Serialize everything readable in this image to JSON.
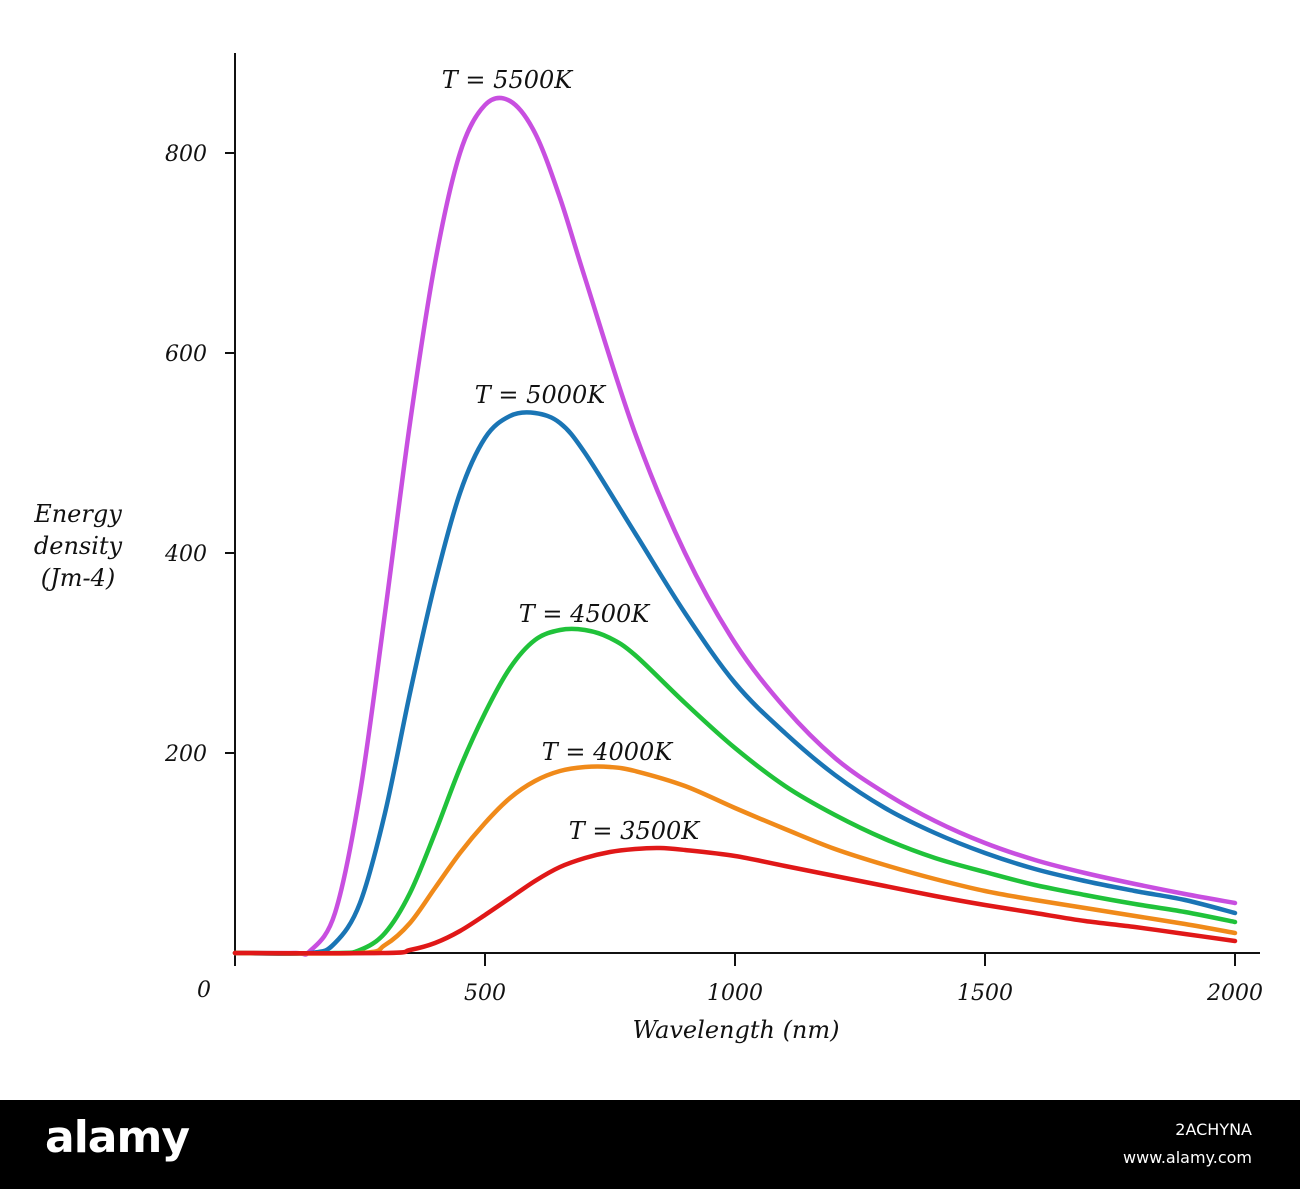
{
  "chart_data": {
    "type": "line",
    "title": "",
    "xlabel": "Wavelength (nm)",
    "ylabel": [
      "Energy",
      "density",
      "(Jm-4)"
    ],
    "xlim": [
      0,
      2050
    ],
    "ylim": [
      0,
      900
    ],
    "x_origin_label": "0",
    "xticks": [
      500,
      1000,
      1500,
      2000
    ],
    "xtick_labels": [
      "500",
      "1000",
      "1500",
      "2000"
    ],
    "yticks": [
      200,
      400,
      600,
      800
    ],
    "ytick_labels": [
      "200",
      "400",
      "600",
      "800"
    ],
    "grid": false,
    "legend": "none",
    "series": [
      {
        "name": "T = 5500K",
        "color": "#c84fe0",
        "x": [
          0,
          120,
          150,
          200,
          250,
          300,
          350,
          400,
          450,
          500,
          550,
          600,
          650,
          700,
          800,
          900,
          1000,
          1100,
          1200,
          1300,
          1400,
          1500,
          1600,
          1700,
          1800,
          1900,
          2000
        ],
        "y": [
          0,
          0,
          2,
          40,
          160,
          340,
          530,
          690,
          800,
          848,
          852,
          820,
          755,
          675,
          520,
          400,
          310,
          245,
          195,
          160,
          132,
          110,
          93,
          80,
          69,
          59,
          50
        ]
      },
      {
        "name": "T = 5000K",
        "color": "#1a75b5",
        "x": [
          0,
          150,
          200,
          250,
          300,
          350,
          400,
          450,
          500,
          550,
          600,
          650,
          700,
          800,
          900,
          1000,
          1100,
          1200,
          1300,
          1400,
          1500,
          1600,
          1700,
          1800,
          1900,
          2000
        ],
        "y": [
          0,
          0,
          10,
          50,
          140,
          260,
          370,
          460,
          515,
          537,
          540,
          530,
          500,
          420,
          340,
          270,
          220,
          178,
          145,
          120,
          100,
          84,
          72,
          62,
          53,
          40
        ]
      },
      {
        "name": "T = 4500K",
        "color": "#20c23a",
        "x": [
          0,
          200,
          250,
          300,
          350,
          400,
          450,
          500,
          550,
          600,
          650,
          700,
          750,
          800,
          900,
          1000,
          1100,
          1200,
          1300,
          1400,
          1500,
          1600,
          1700,
          1800,
          1900,
          2000
        ],
        "y": [
          0,
          0,
          3,
          20,
          60,
          120,
          185,
          240,
          285,
          313,
          323,
          323,
          315,
          298,
          250,
          205,
          167,
          138,
          114,
          95,
          81,
          68,
          58,
          49,
          41,
          31
        ]
      },
      {
        "name": "T = 4000K",
        "color": "#f08a1a",
        "x": [
          0,
          250,
          300,
          350,
          400,
          450,
          500,
          550,
          600,
          650,
          700,
          750,
          800,
          900,
          1000,
          1100,
          1200,
          1300,
          1400,
          1500,
          1600,
          1700,
          1800,
          1900,
          2000
        ],
        "y": [
          0,
          0,
          8,
          30,
          65,
          100,
          130,
          155,
          172,
          182,
          186,
          186,
          182,
          167,
          145,
          124,
          104,
          88,
          74,
          62,
          53,
          45,
          37,
          29,
          20
        ]
      },
      {
        "name": "T = 3500K",
        "color": "#e01818",
        "x": [
          0,
          300,
          350,
          400,
          450,
          500,
          550,
          600,
          650,
          700,
          750,
          800,
          850,
          900,
          1000,
          1100,
          1200,
          1300,
          1400,
          1500,
          1600,
          1700,
          1800,
          1900,
          2000
        ],
        "y": [
          0,
          0,
          3,
          10,
          22,
          38,
          55,
          72,
          86,
          95,
          101,
          104,
          105,
          103,
          97,
          87,
          77,
          67,
          57,
          48,
          40,
          32,
          26,
          19,
          12
        ]
      }
    ]
  },
  "footer": {
    "brand": "alamy",
    "image_id": "2ACHYNA",
    "site": "www.alamy.com",
    "background": "#000000"
  }
}
